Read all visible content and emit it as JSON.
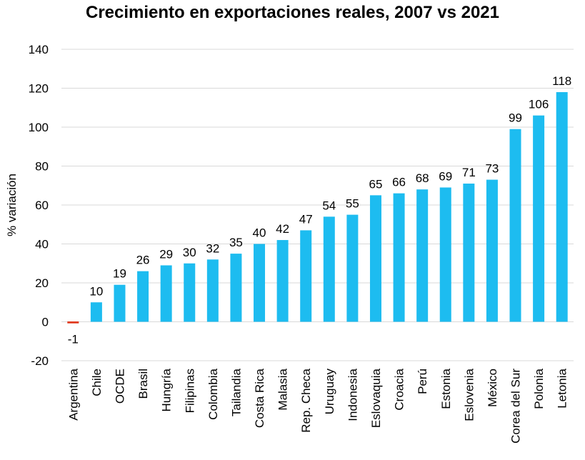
{
  "chart_data": {
    "type": "bar",
    "title": "Crecimiento en exportaciones reales, 2007 vs 2021",
    "xlabel": "",
    "ylabel": "% variación",
    "ylim": [
      -20,
      140
    ],
    "yticks": [
      -20,
      0,
      20,
      40,
      60,
      80,
      100,
      120,
      140
    ],
    "grid": true,
    "legend": "none",
    "categories": [
      "Argentina",
      "Chile",
      "OCDE",
      "Brasil",
      "Hungría",
      "Filipinas",
      "Colombia",
      "Tailandia",
      "Costa Rica",
      "Malasia",
      "Rep. Checa",
      "Uruguay",
      "Indonesia",
      "Eslovaquia",
      "Croacia",
      "Perú",
      "Estonia",
      "Eslovenia",
      "México",
      "Corea del Sur",
      "Polonia",
      "Letonia"
    ],
    "values": [
      -1,
      10,
      19,
      26,
      29,
      30,
      32,
      35,
      40,
      42,
      47,
      54,
      55,
      65,
      66,
      68,
      69,
      71,
      73,
      99,
      106,
      118
    ],
    "colors": {
      "positive": "#1dbcf0",
      "negative": "#e03a1e",
      "grid": "#d9d9d9"
    }
  }
}
